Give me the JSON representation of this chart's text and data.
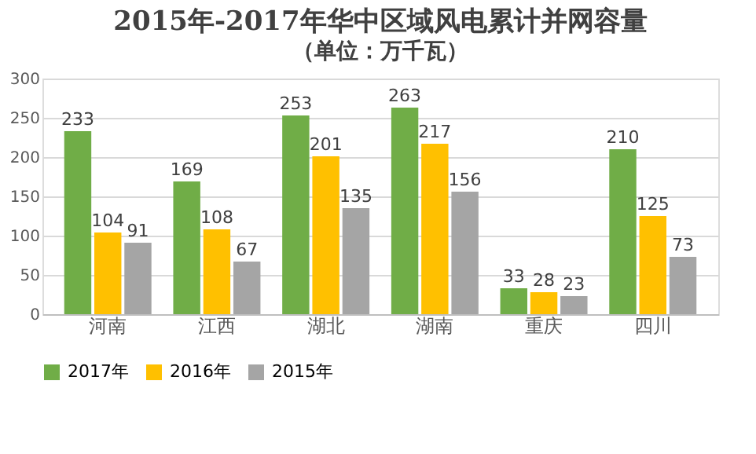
{
  "chart_data": {
    "type": "bar",
    "title": "2015年-2017年华中区域风电累计并网容量",
    "subtitle": "（单位：万千瓦）",
    "categories": [
      "河南",
      "江西",
      "湖北",
      "湖南",
      "重庆",
      "四川"
    ],
    "series": [
      {
        "name": "2017年",
        "color": "#70ad47",
        "values": [
          233,
          169,
          253,
          263,
          33,
          210
        ]
      },
      {
        "name": "2016年",
        "color": "#ffc000",
        "values": [
          104,
          108,
          201,
          217,
          28,
          125
        ]
      },
      {
        "name": "2015年",
        "color": "#a5a5a5",
        "values": [
          91,
          67,
          135,
          156,
          23,
          73
        ]
      }
    ],
    "ylim": [
      0,
      300
    ],
    "yticks": [
      0,
      50,
      100,
      150,
      200,
      250,
      300
    ],
    "grid": "y",
    "legend": "bottom",
    "data_labels": true
  }
}
